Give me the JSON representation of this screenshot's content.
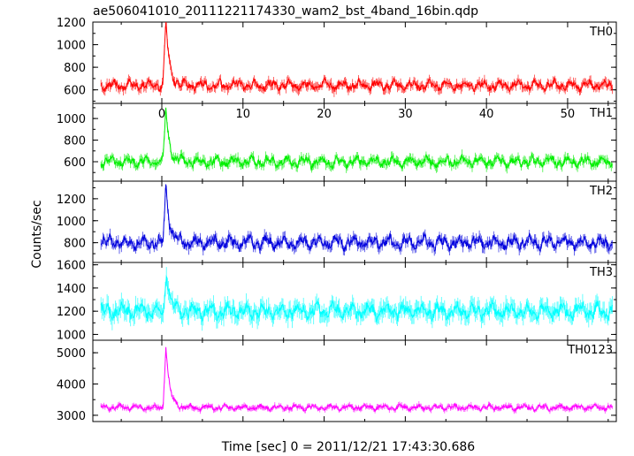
{
  "title": "ae506041010_20111221174330_wam2_bst_4band_16bin.qdp",
  "ylabel": "Counts/sec",
  "xlabel": "Time [sec] 0 = 2011/12/21 17:43:30.686",
  "chart_data": [
    {
      "type": "line",
      "name": "TH0",
      "color": "#ff0000",
      "xlim": [
        -8.5,
        56
      ],
      "ylim": [
        480,
        1200
      ],
      "yticks": [
        600,
        800,
        1000,
        1200
      ],
      "xticks": [
        0,
        10,
        20,
        30,
        40,
        50
      ],
      "xticklabels": [
        "0",
        "10",
        "20",
        "30",
        "40",
        "50"
      ],
      "baseline": 640,
      "noise": 45,
      "peak": {
        "x": 0.5,
        "y": 1200
      },
      "error": 40
    },
    {
      "type": "line",
      "name": "TH1",
      "color": "#00ee00",
      "xlim": [
        -8.5,
        56
      ],
      "ylim": [
        420,
        1140
      ],
      "yticks": [
        600,
        800,
        1000
      ],
      "xticks": [
        0,
        10,
        20,
        30,
        40,
        50
      ],
      "xticklabels": [
        "",
        "",
        "",
        "",
        "",
        ""
      ],
      "baseline": 600,
      "noise": 50,
      "peak": {
        "x": 0.5,
        "y": 1100
      },
      "error": 40
    },
    {
      "type": "line",
      "name": "TH2",
      "color": "#0000dd",
      "xlim": [
        -8.5,
        56
      ],
      "ylim": [
        620,
        1360
      ],
      "yticks": [
        800,
        1000,
        1200
      ],
      "xticks": [
        0,
        10,
        20,
        30,
        40,
        50
      ],
      "xticklabels": [
        "",
        "",
        "",
        "",
        "",
        ""
      ],
      "baseline": 800,
      "noise": 60,
      "peak": {
        "x": 0.5,
        "y": 1350
      },
      "error": 45
    },
    {
      "type": "line",
      "name": "TH3",
      "color": "#00ffff",
      "xlim": [
        -8.5,
        56
      ],
      "ylim": [
        950,
        1620
      ],
      "yticks": [
        1000,
        1200,
        1400,
        1600
      ],
      "xticks": [
        0,
        10,
        20,
        30,
        40,
        50
      ],
      "xticklabels": [
        "",
        "",
        "",
        "",
        "",
        ""
      ],
      "baseline": 1200,
      "noise": 70,
      "peak": {
        "x": 0.6,
        "y": 1560
      },
      "error": 70
    },
    {
      "type": "line",
      "name": "TH0123",
      "color": "#ff00ff",
      "xlim": [
        -8.5,
        56
      ],
      "ylim": [
        2800,
        5400
      ],
      "yticks": [
        3000,
        4000,
        5000
      ],
      "xticks": [
        0,
        10,
        20,
        30,
        40,
        50
      ],
      "xticklabels": [
        "",
        "",
        "",
        "",
        "",
        ""
      ],
      "baseline": 3250,
      "noise": 90,
      "peak": {
        "x": 0.5,
        "y": 5250
      },
      "error": 80
    }
  ]
}
